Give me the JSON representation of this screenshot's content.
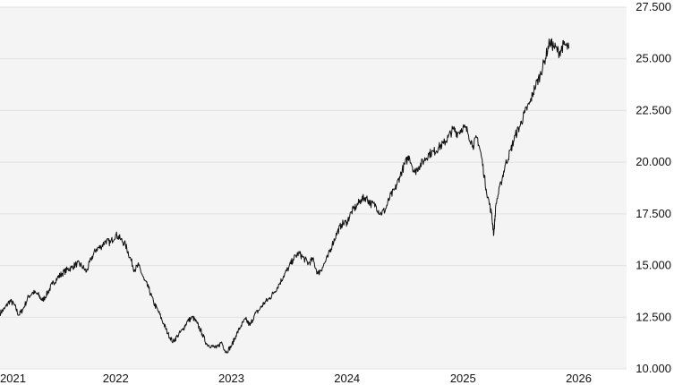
{
  "chart_data": {
    "type": "line",
    "title": "",
    "xlabel": "",
    "ylabel": "",
    "x_tick_labels": [
      "2021",
      "2022",
      "2023",
      "2024",
      "2025",
      "2026"
    ],
    "y_tick_labels": [
      "10.000",
      "12.500",
      "15.000",
      "17.500",
      "20.000",
      "22.500",
      "25.000",
      "27.500"
    ],
    "y_ticks": [
      10000,
      12500,
      15000,
      17500,
      20000,
      22500,
      25000,
      27500
    ],
    "xlim": [
      "2021-01-01",
      "2026-06-01"
    ],
    "ylim": [
      10000,
      27500
    ],
    "grid": "horizontal",
    "y_axis_side": "right",
    "colors": {
      "line": "#111111",
      "plot_background": "#f4f4f4",
      "grid": "#e2e2e2"
    },
    "series": [
      {
        "x": [
          "2021-01-01",
          "2021-01-15",
          "2021-02-01",
          "2021-02-15",
          "2021-03-01",
          "2021-03-15",
          "2021-04-01",
          "2021-04-15",
          "2021-05-01",
          "2021-05-15",
          "2021-06-01",
          "2021-06-15",
          "2021-07-01",
          "2021-07-15",
          "2021-08-01",
          "2021-08-15",
          "2021-09-01",
          "2021-09-15",
          "2021-10-01",
          "2021-10-15",
          "2021-11-01",
          "2021-11-15",
          "2021-12-01",
          "2021-12-15",
          "2022-01-01",
          "2022-01-15",
          "2022-02-01",
          "2022-02-15",
          "2022-03-01",
          "2022-03-15",
          "2022-04-01",
          "2022-04-15",
          "2022-05-01",
          "2022-05-15",
          "2022-06-01",
          "2022-06-15",
          "2022-07-01",
          "2022-07-15",
          "2022-08-01",
          "2022-08-15",
          "2022-09-01",
          "2022-09-15",
          "2022-10-01",
          "2022-10-15",
          "2022-11-01",
          "2022-11-15",
          "2022-12-01",
          "2022-12-15",
          "2023-01-01",
          "2023-01-15",
          "2023-02-01",
          "2023-02-15",
          "2023-03-01",
          "2023-03-15",
          "2023-04-01",
          "2023-04-15",
          "2023-05-01",
          "2023-05-15",
          "2023-06-01",
          "2023-06-15",
          "2023-07-01",
          "2023-07-15",
          "2023-08-01",
          "2023-08-15",
          "2023-09-01",
          "2023-09-15",
          "2023-10-01",
          "2023-10-15",
          "2023-11-01",
          "2023-11-15",
          "2023-12-01",
          "2023-12-15",
          "2024-01-01",
          "2024-01-15",
          "2024-02-01",
          "2024-02-15",
          "2024-03-01",
          "2024-03-15",
          "2024-04-01",
          "2024-04-15",
          "2024-05-01",
          "2024-05-15",
          "2024-06-01",
          "2024-06-15",
          "2024-07-01",
          "2024-07-15",
          "2024-08-01",
          "2024-08-15",
          "2024-09-01",
          "2024-09-15",
          "2024-10-01",
          "2024-10-15",
          "2024-11-01",
          "2024-11-15",
          "2024-12-01",
          "2024-12-15",
          "2025-01-01",
          "2025-01-15",
          "2025-02-01",
          "2025-02-15",
          "2025-03-01",
          "2025-03-15",
          "2025-04-01",
          "2025-04-08",
          "2025-04-15",
          "2025-05-01",
          "2025-05-15",
          "2025-06-01",
          "2025-06-15",
          "2025-07-01",
          "2025-07-15",
          "2025-08-01",
          "2025-08-15",
          "2025-09-01",
          "2025-09-15",
          "2025-10-01",
          "2025-10-15",
          "2025-11-01",
          "2025-11-15",
          "2025-12-01"
        ],
        "values": [
          12700,
          12900,
          13300,
          13100,
          12600,
          12900,
          13500,
          13700,
          13600,
          13300,
          13700,
          14100,
          14400,
          14600,
          14800,
          14900,
          15100,
          15000,
          14700,
          15300,
          15800,
          15900,
          16200,
          16100,
          16500,
          16300,
          16000,
          15400,
          14800,
          15000,
          14300,
          13900,
          13200,
          12800,
          12200,
          11700,
          11300,
          11600,
          11900,
          12300,
          12500,
          12200,
          11700,
          11200,
          11100,
          11000,
          11300,
          10800,
          11100,
          11600,
          12100,
          12400,
          12100,
          12600,
          12900,
          13200,
          13400,
          13700,
          14100,
          14500,
          14900,
          15300,
          15600,
          15400,
          15100,
          15300,
          14600,
          14900,
          15400,
          16000,
          16600,
          17000,
          17100,
          17600,
          17900,
          18200,
          18300,
          18000,
          17900,
          17500,
          17700,
          18300,
          18700,
          19300,
          19900,
          20300,
          19500,
          19800,
          20100,
          20400,
          20500,
          20700,
          20900,
          21200,
          21600,
          21400,
          21700,
          21500,
          20800,
          21200,
          20200,
          18700,
          17500,
          16500,
          18000,
          19000,
          19900,
          20600,
          21300,
          21800,
          22400,
          22900,
          23600,
          24200,
          24900,
          25800,
          25600,
          25300,
          25700,
          25500
        ]
      }
    ]
  }
}
